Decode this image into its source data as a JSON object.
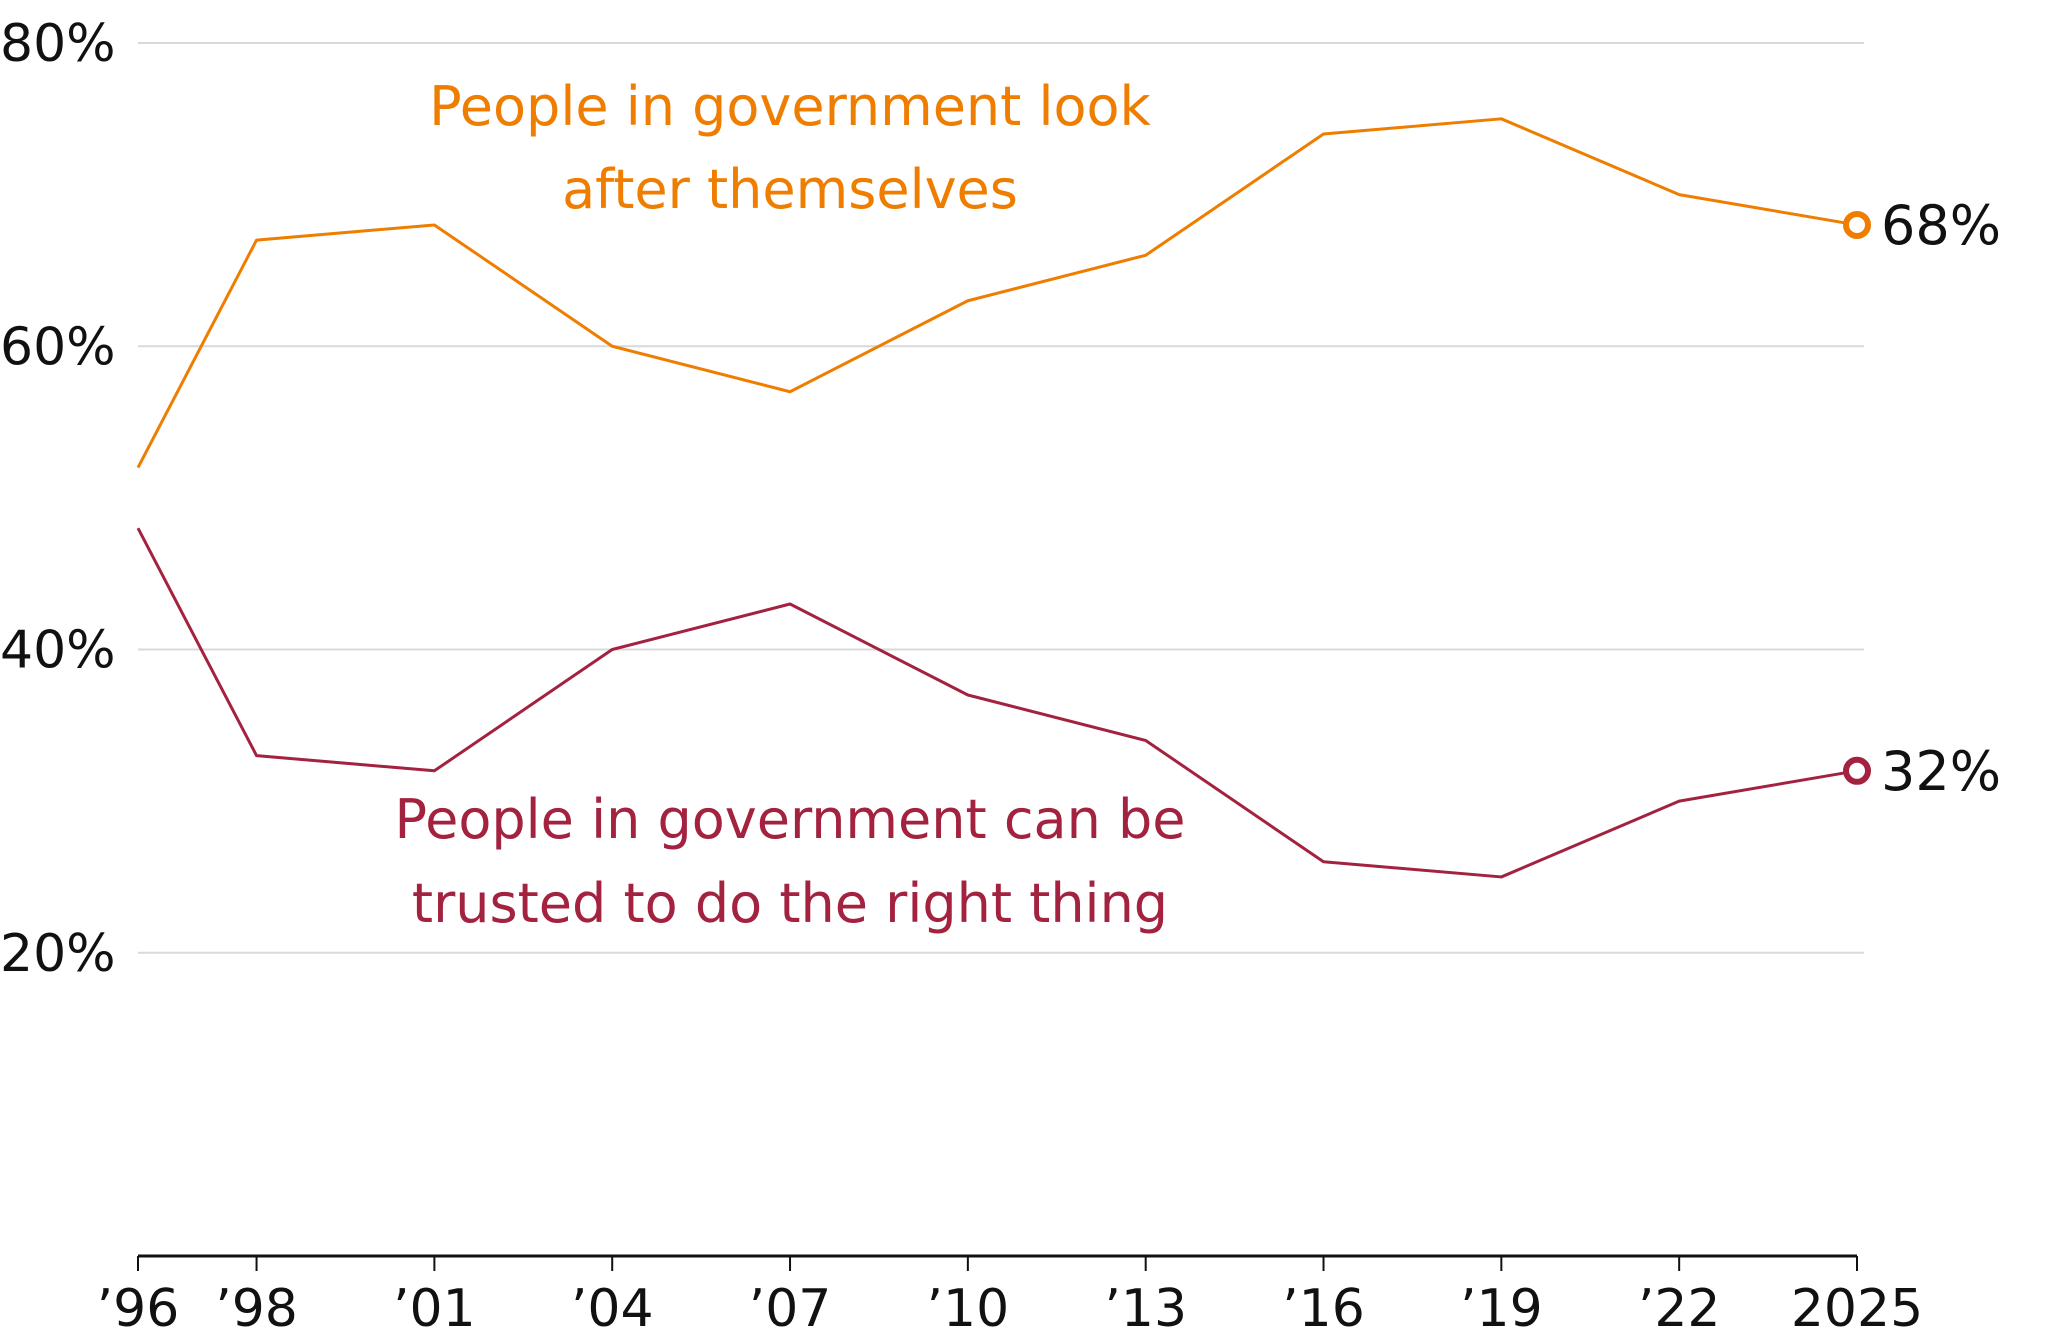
{
  "chart_data": {
    "type": "line",
    "title": "",
    "xlabel": "",
    "ylabel": "",
    "x": [
      1996,
      1998,
      2001,
      2004,
      2007,
      2010,
      2013,
      2016,
      2019,
      2022,
      2025
    ],
    "x_tick_labels": [
      "’96",
      "’98",
      "’01",
      "’04",
      "’07",
      "’10",
      "’13",
      "’16",
      "’19",
      "’22",
      "2025"
    ],
    "ylim": [
      0,
      80
    ],
    "y_ticks": [
      20,
      40,
      60,
      80
    ],
    "y_tick_labels": [
      "20%",
      "40%",
      "60%",
      "80%"
    ],
    "grid": true,
    "legend": "inline labels",
    "series": [
      {
        "name": "People in government look after themselves",
        "label_lines": [
          "People in government look",
          "after themselves"
        ],
        "color": "#EE7D00",
        "values": [
          52,
          67,
          68,
          60,
          57,
          63,
          66,
          74,
          75,
          70,
          68
        ],
        "end_label": "68%"
      },
      {
        "name": "People in government can be trusted to do the right thing",
        "label_lines": [
          "People in government can be",
          "trusted to do the right thing"
        ],
        "color": "#A3223F",
        "values": [
          48,
          33,
          32,
          40,
          43,
          37,
          34,
          26,
          25,
          30,
          32
        ],
        "end_label": "32%"
      }
    ]
  }
}
